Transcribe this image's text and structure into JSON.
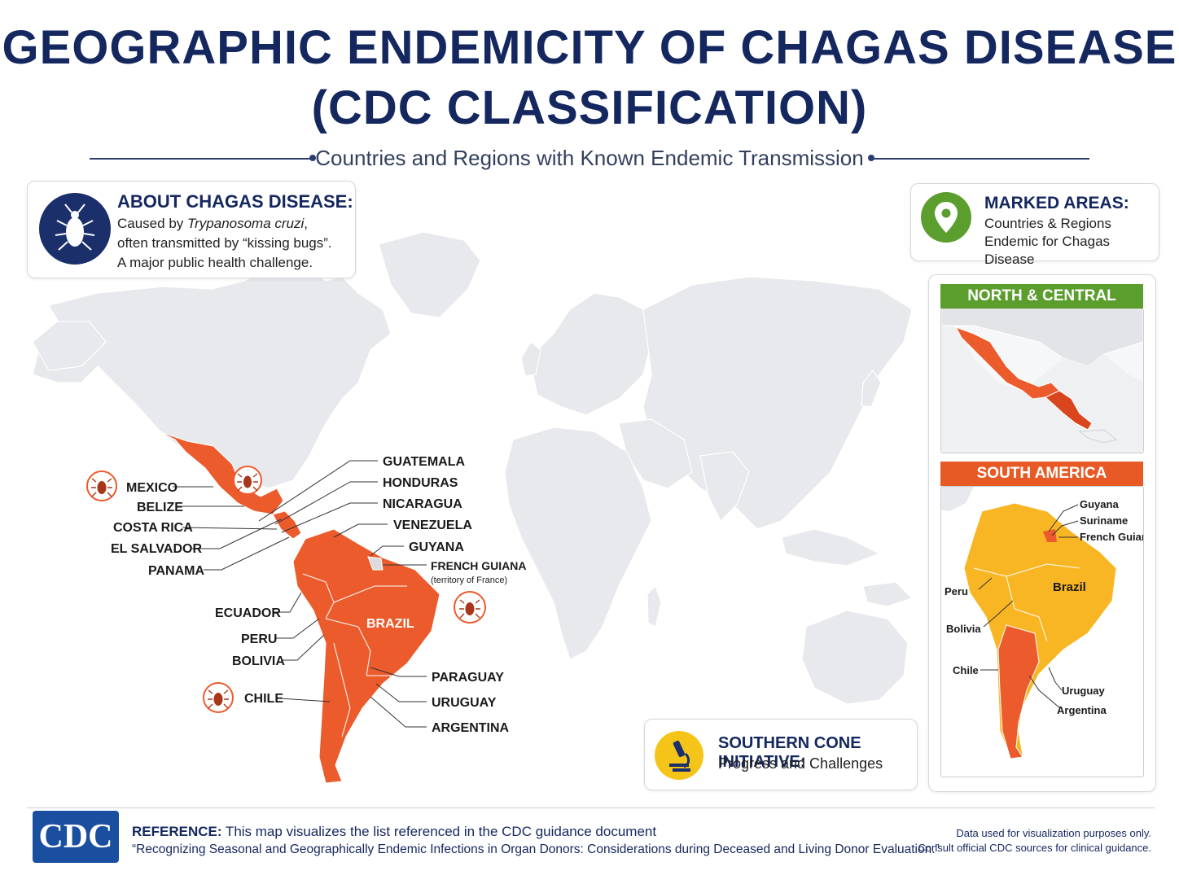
{
  "title_line1": "GEOGRAPHIC ENDEMICITY OF CHAGAS DISEASE",
  "title_line2": "(CDC CLASSIFICATION)",
  "subtitle": "Countries and Regions with Known Endemic Transmission",
  "about": {
    "heading": "ABOUT CHAGAS DISEASE:",
    "line1_prefix": "Caused by ",
    "line1_italic": "Trypanosoma cruzi",
    "line1_suffix": ",",
    "line2": "often transmitted by “kissing bugs”.",
    "line3": "A major public health challenge.",
    "icon": "kissing-bug-icon"
  },
  "marked": {
    "heading": "MARKED AREAS:",
    "line1": "Countries & Regions",
    "line2": "Endemic for Chagas Disease",
    "icon": "map-pin-icon"
  },
  "insets": {
    "north_central": {
      "title": "NORTH & CENTRAL AMERICA"
    },
    "south": {
      "title": "SOUTH AMERICA",
      "labels": [
        "Guyana",
        "Suriname",
        "French Guiana",
        "Brazil",
        "Peru",
        "Bolivia",
        "Chile",
        "Uruguay",
        "Argentina"
      ]
    }
  },
  "map_labels": {
    "left": [
      "MEXICO",
      "BELIZE",
      "COSTA RICA",
      "EL SALVADOR",
      "PANAMA",
      "ECUADOR",
      "PERU",
      "BOLIVIA",
      "CHILE"
    ],
    "right": [
      "GUATEMALA",
      "HONDURAS",
      "NICARAGUA",
      "VENEZUELA",
      "GUYANA",
      "FRENCH GUIANA",
      "PARAGUAY",
      "URUGUAY",
      "ARGENTINA"
    ],
    "french_guiana_note": "(territory of France)",
    "brazil": "BRAZIL"
  },
  "southern_cone": {
    "heading": "SOUTHERN CONE INITIATIVE:",
    "text": "Progress and Challenges",
    "icon": "microscope-icon"
  },
  "footer": {
    "logo": "CDC",
    "ref_label": "REFERENCE:",
    "ref_text": " This map visualizes the list referenced in the CDC guidance document",
    "ref_doc": "“Recognizing Seasonal and Geographically Endemic Infections in Organ Donors: Considerations during Deceased and Living Donor Evaluation.”",
    "note1": "Data used for visualization purposes only.",
    "note2": "Consult official CDC sources for clinical guidance."
  },
  "colors": {
    "endemic": "#ec5b2c",
    "land": "#e8e9ec",
    "navy": "#14275f",
    "green": "#5b9e2e",
    "orange_header": "#e85a25",
    "south_inset_land": "#f8b624"
  }
}
